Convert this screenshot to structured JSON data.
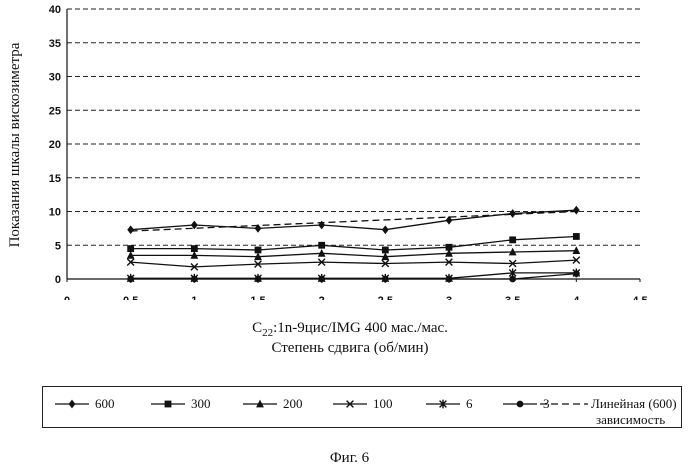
{
  "chart_data": {
    "type": "line",
    "title": "",
    "xlabel_line1": "C22:1n-9цис/IMG 400 мас./мас.",
    "xlabel_line2": "Степень сдвига (об/мин)",
    "ylabel": "Показания шкалы вискозиметра",
    "xlim": [
      0,
      4.5
    ],
    "ylim": [
      0,
      40
    ],
    "x_ticks": [
      "0",
      "0,5",
      "1",
      "1,5",
      "2",
      "2,5",
      "3",
      "3,5",
      "4",
      "4,5"
    ],
    "y_ticks": [
      "0",
      "5",
      "10",
      "15",
      "20",
      "25",
      "30",
      "35",
      "40"
    ],
    "grid": "horizontal dashed",
    "x": [
      0.5,
      1,
      1.5,
      2,
      2.5,
      3,
      3.5,
      4
    ],
    "series": [
      {
        "name": "600",
        "marker": "diamond",
        "values": [
          7.3,
          8.0,
          7.5,
          8.0,
          7.3,
          8.7,
          9.7,
          10.2
        ]
      },
      {
        "name": "300",
        "marker": "square",
        "values": [
          4.5,
          4.5,
          4.3,
          5.0,
          4.3,
          4.7,
          5.8,
          6.3
        ]
      },
      {
        "name": "200",
        "marker": "triangle",
        "values": [
          3.5,
          3.5,
          3.3,
          3.8,
          3.3,
          3.8,
          4.0,
          4.2
        ]
      },
      {
        "name": "100",
        "marker": "x",
        "values": [
          2.5,
          1.8,
          2.2,
          2.5,
          2.3,
          2.5,
          2.3,
          2.8
        ]
      },
      {
        "name": "6",
        "marker": "star",
        "values": [
          0.1,
          0.1,
          0.1,
          0.1,
          0.1,
          0.1,
          0.9,
          0.9
        ]
      },
      {
        "name": "3",
        "marker": "circle",
        "values": [
          0.0,
          0.0,
          0.0,
          0.0,
          0.0,
          0.0,
          0.0,
          0.8
        ]
      }
    ],
    "trendline": {
      "name": "Линейная (600)",
      "name_line2": "зависимость",
      "y_start": 7.1,
      "y_end": 10.0
    },
    "legend_position": "bottom"
  },
  "figure_caption": "Фиг. 6"
}
